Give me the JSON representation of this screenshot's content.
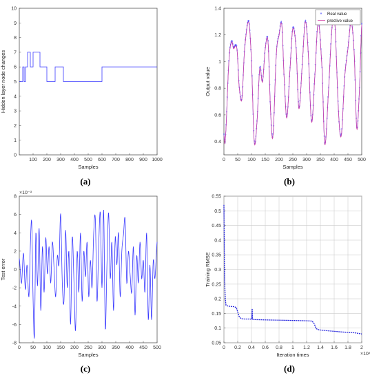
{
  "panels": [
    {
      "id": "a",
      "caption": "(a)",
      "chart_data": {
        "type": "line",
        "xlabel": "Samples",
        "ylabel": "Hidden layer node changes",
        "xlim": [
          0,
          1000
        ],
        "ylim": [
          0,
          10
        ],
        "xticks": [
          "100",
          "200",
          "300",
          "400",
          "500",
          "600",
          "700",
          "800",
          "900",
          "1000"
        ],
        "yticks": [
          "0",
          "1",
          "2",
          "3",
          "4",
          "5",
          "6",
          "7",
          "8",
          "9",
          "10"
        ],
        "grid": false,
        "series": [
          {
            "color": "#3a3aff",
            "step": true,
            "points": [
              [
                0,
                5
              ],
              [
                25,
                5
              ],
              [
                25,
                6
              ],
              [
                35,
                6
              ],
              [
                35,
                5
              ],
              [
                45,
                5
              ],
              [
                45,
                6
              ],
              [
                60,
                6
              ],
              [
                60,
                7
              ],
              [
                80,
                7
              ],
              [
                80,
                6
              ],
              [
                100,
                6
              ],
              [
                100,
                7
              ],
              [
                150,
                7
              ],
              [
                150,
                6
              ],
              [
                200,
                6
              ],
              [
                200,
                5
              ],
              [
                260,
                5
              ],
              [
                260,
                6
              ],
              [
                320,
                6
              ],
              [
                320,
                5
              ],
              [
                600,
                5
              ],
              [
                600,
                6
              ],
              [
                1000,
                6
              ]
            ]
          }
        ]
      }
    },
    {
      "id": "b",
      "caption": "(b)",
      "chart_data": {
        "type": "line",
        "xlabel": "Samples",
        "ylabel": "Output value",
        "xlim": [
          0,
          500
        ],
        "ylim": [
          0.3,
          1.4
        ],
        "xticks": [
          "0",
          "50",
          "100",
          "150",
          "200",
          "250",
          "300",
          "350",
          "400",
          "450",
          "500"
        ],
        "yticks": [
          "0.4",
          "0.6",
          "0.8",
          "1",
          "1.2",
          "1.4"
        ],
        "grid": false,
        "legend": {
          "position": "top-right",
          "entries": [
            "Real value",
            "prective value"
          ]
        },
        "series": [
          {
            "name": "Real value",
            "color": "#3a3aff",
            "marker": "star",
            "kp": [
              [
                0,
                0.45
              ],
              [
                5,
                0.42
              ],
              [
                18,
                1.0
              ],
              [
                28,
                1.15
              ],
              [
                35,
                1.1
              ],
              [
                42,
                1.12
              ],
              [
                48,
                1.08
              ],
              [
                55,
                0.82
              ],
              [
                65,
                0.72
              ],
              [
                75,
                1.1
              ],
              [
                90,
                1.3
              ],
              [
                100,
                1.0
              ],
              [
                110,
                0.4
              ],
              [
                120,
                0.55
              ],
              [
                130,
                0.95
              ],
              [
                140,
                0.85
              ],
              [
                150,
                1.1
              ],
              [
                160,
                1.15
              ],
              [
                170,
                0.6
              ],
              [
                178,
                0.45
              ],
              [
                190,
                1.05
              ],
              [
                200,
                1.2
              ],
              [
                210,
                1.28
              ],
              [
                218,
                0.9
              ],
              [
                228,
                0.58
              ],
              [
                240,
                0.95
              ],
              [
                250,
                1.25
              ],
              [
                262,
                1.1
              ],
              [
                272,
                0.65
              ],
              [
                285,
                1.0
              ],
              [
                295,
                1.3
              ],
              [
                305,
                1.1
              ],
              [
                318,
                0.55
              ],
              [
                330,
                0.9
              ],
              [
                342,
                1.3
              ],
              [
                356,
                0.95
              ],
              [
                366,
                0.38
              ],
              [
                380,
                0.8
              ],
              [
                392,
                1.25
              ],
              [
                402,
                1.3
              ],
              [
                416,
                0.62
              ],
              [
                426,
                0.45
              ],
              [
                438,
                0.88
              ],
              [
                450,
                1.1
              ],
              [
                462,
                1.3
              ],
              [
                473,
                1.05
              ],
              [
                482,
                0.5
              ],
              [
                492,
                0.8
              ],
              [
                500,
                1.28
              ]
            ]
          },
          {
            "name": "prective value",
            "color": "#d44aa8",
            "marker": "none"
          }
        ]
      }
    },
    {
      "id": "c",
      "caption": "(c)",
      "chart_data": {
        "type": "line",
        "xlabel": "Samples",
        "ylabel": "Test error",
        "scale_label": "×10⁻³",
        "xlim": [
          0,
          500
        ],
        "ylim": [
          -8,
          8
        ],
        "xticks": [
          "0",
          "50",
          "100",
          "150",
          "200",
          "250",
          "300",
          "350",
          "400",
          "450",
          "500"
        ],
        "yticks": [
          "-8",
          "-6",
          "-4",
          "-2",
          "0",
          "2",
          "4",
          "6",
          "8"
        ],
        "grid": false,
        "series": [
          {
            "color": "#3a3aff",
            "kp": [
              [
                0,
                1.2
              ],
              [
                8,
                -1.5
              ],
              [
                15,
                1.8
              ],
              [
                22,
                -2.2
              ],
              [
                28,
                0.5
              ],
              [
                35,
                -3.0
              ],
              [
                40,
                2.5
              ],
              [
                45,
                5.2
              ],
              [
                50,
                -3.2
              ],
              [
                55,
                -7.3
              ],
              [
                60,
                4.0
              ],
              [
                66,
                -1.8
              ],
              [
                72,
                4.5
              ],
              [
                78,
                -4.5
              ],
              [
                84,
                2.5
              ],
              [
                90,
                -2.5
              ],
              [
                96,
                3.5
              ],
              [
                102,
                -0.5
              ],
              [
                108,
                2.5
              ],
              [
                114,
                -1.5
              ],
              [
                120,
                3.0
              ],
              [
                126,
                0.2
              ],
              [
                132,
                -3.0
              ],
              [
                138,
                1.5
              ],
              [
                144,
                0.5
              ],
              [
                150,
                6.1
              ],
              [
                156,
                -1.5
              ],
              [
                162,
                -3.5
              ],
              [
                168,
                4.3
              ],
              [
                174,
                -2.0
              ],
              [
                180,
                2.0
              ],
              [
                186,
                -6.0
              ],
              [
                192,
                3.5
              ],
              [
                198,
                -1.0
              ],
              [
                204,
                -6.7
              ],
              [
                210,
                2.0
              ],
              [
                216,
                -2.5
              ],
              [
                222,
                4.0
              ],
              [
                228,
                -3.5
              ],
              [
                234,
                2.0
              ],
              [
                240,
                -0.8
              ],
              [
                246,
                3.0
              ],
              [
                252,
                -3.0
              ],
              [
                258,
                1.0
              ],
              [
                264,
                -2.0
              ],
              [
                270,
                4.0
              ],
              [
                276,
                5.5
              ],
              [
                282,
                -3.5
              ],
              [
                288,
                2.5
              ],
              [
                294,
                6.2
              ],
              [
                300,
                -2.0
              ],
              [
                306,
                6.5
              ],
              [
                312,
                -6.5
              ],
              [
                318,
                0.5
              ],
              [
                324,
                6.2
              ],
              [
                330,
                -1.0
              ],
              [
                336,
                3.0
              ],
              [
                342,
                -4.5
              ],
              [
                348,
                3.5
              ],
              [
                354,
                0.5
              ],
              [
                360,
                4.0
              ],
              [
                366,
                -3.0
              ],
              [
                372,
                2.0
              ],
              [
                378,
                3.8
              ],
              [
                384,
                5.5
              ],
              [
                390,
                -1.5
              ],
              [
                396,
                2.0
              ],
              [
                402,
                -0.5
              ],
              [
                408,
                -2.5
              ],
              [
                414,
                2.5
              ],
              [
                420,
                -5.0
              ],
              [
                426,
                1.5
              ],
              [
                432,
                -1.5
              ],
              [
                438,
                3.0
              ],
              [
                444,
                -1.0
              ],
              [
                450,
                1.0
              ],
              [
                456,
                -2.5
              ],
              [
                462,
                4.0
              ],
              [
                468,
                -5.5
              ],
              [
                474,
                0.5
              ],
              [
                480,
                -5.5
              ],
              [
                486,
                1.0
              ],
              [
                492,
                -1.0
              ],
              [
                500,
                3.0
              ]
            ]
          }
        ]
      }
    },
    {
      "id": "d",
      "caption": "(d)",
      "chart_data": {
        "type": "line",
        "xlabel": "Iteration times",
        "ylabel": "Training RMSE",
        "scale_label": "×10⁴",
        "xlim": [
          0,
          2
        ],
        "ylim": [
          0.05,
          0.55
        ],
        "xticks": [
          "0",
          "0.2",
          "0.4",
          "0.6",
          "0.8",
          "1",
          "1.2",
          "1.4",
          "1.6",
          "1.8",
          "2"
        ],
        "yticks": [
          "0.05",
          "0.1",
          "0.15",
          "0.2",
          "0.25",
          "0.3",
          "0.35",
          "0.4",
          "0.45",
          "0.5",
          "0.55"
        ],
        "grid": true,
        "series": [
          {
            "color": "#2222dd",
            "dashed": true,
            "points": [
              [
                0,
                0.52
              ],
              [
                0.005,
                0.38
              ],
              [
                0.01,
                0.26
              ],
              [
                0.02,
                0.2
              ],
              [
                0.03,
                0.178
              ],
              [
                0.06,
                0.175
              ],
              [
                0.1,
                0.174
              ],
              [
                0.15,
                0.173
              ],
              [
                0.18,
                0.17
              ],
              [
                0.2,
                0.155
              ],
              [
                0.22,
                0.14
              ],
              [
                0.25,
                0.132
              ],
              [
                0.3,
                0.131
              ],
              [
                0.38,
                0.131
              ],
              [
                0.4,
                0.13
              ],
              [
                0.41,
                0.166
              ],
              [
                0.415,
                0.13
              ],
              [
                0.45,
                0.129
              ],
              [
                0.6,
                0.128
              ],
              [
                0.8,
                0.127
              ],
              [
                1.0,
                0.126
              ],
              [
                1.2,
                0.125
              ],
              [
                1.28,
                0.124
              ],
              [
                1.31,
                0.115
              ],
              [
                1.34,
                0.098
              ],
              [
                1.38,
                0.094
              ],
              [
                1.5,
                0.091
              ],
              [
                1.7,
                0.087
              ],
              [
                1.9,
                0.084
              ],
              [
                2.0,
                0.08
              ]
            ]
          }
        ]
      }
    }
  ]
}
